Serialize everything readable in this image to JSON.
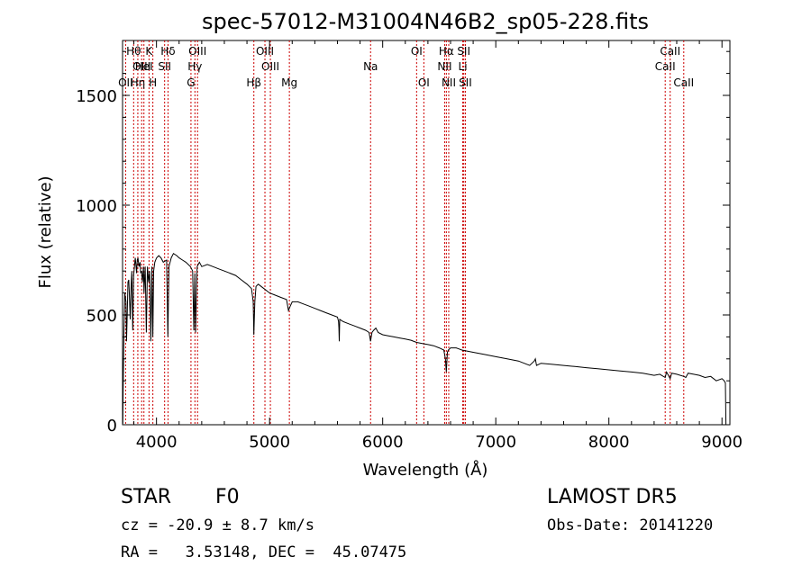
{
  "chart_data": {
    "type": "line",
    "title": "spec-57012-M31004N46B2_sp05-228.fits",
    "xlabel": "Wavelength (Å)",
    "ylabel": "Flux (relative)",
    "xlim": [
      3700,
      9070
    ],
    "ylim": [
      0,
      1750
    ],
    "xticks": [
      4000,
      5000,
      6000,
      7000,
      8000,
      9000
    ],
    "yticks": [
      0,
      500,
      1000,
      1500
    ],
    "grid": false,
    "line_color": "#000000",
    "marker_color": "#cc0000",
    "series": [
      {
        "x": [
          3702,
          3705,
          3712,
          3720,
          3730,
          3735,
          3742,
          3748,
          3755,
          3760,
          3768,
          3775,
          3782,
          3790,
          3798,
          3805,
          3812,
          3818,
          3824,
          3830,
          3836,
          3845,
          3855,
          3860,
          3868,
          3875,
          3885,
          3890,
          3900,
          3910,
          3920,
          3930,
          3940,
          3950,
          3960,
          3968,
          3975,
          3985,
          4000,
          4020,
          4040,
          4060,
          4090,
          4101,
          4110,
          4130,
          4150,
          4180,
          4200,
          4230,
          4260,
          4300,
          4320,
          4330,
          4340,
          4345,
          4360,
          4380,
          4400,
          4450,
          4500,
          4550,
          4600,
          4650,
          4700,
          4750,
          4800,
          4840,
          4855,
          4861,
          4870,
          4880,
          4900,
          4950,
          5000,
          5050,
          5100,
          5150,
          5167,
          5183,
          5200,
          5250,
          5300,
          5350,
          5400,
          5450,
          5500,
          5550,
          5600,
          5610,
          5613,
          5616,
          5620,
          5650,
          5700,
          5750,
          5800,
          5850,
          5880,
          5893,
          5905,
          5920,
          5940,
          5960,
          6000,
          6050,
          6100,
          6150,
          6200,
          6250,
          6300,
          6350,
          6400,
          6450,
          6500,
          6540,
          6555,
          6563,
          6572,
          6580,
          6600,
          6650,
          6700,
          6800,
          6900,
          7000,
          7100,
          7200,
          7300,
          7340,
          7350,
          7360,
          7400,
          7500,
          7600,
          7700,
          7800,
          7900,
          8000,
          8100,
          8200,
          8300,
          8400,
          8450,
          8498,
          8510,
          8542,
          8555,
          8600,
          8662,
          8680,
          8700,
          8750,
          8800,
          8850,
          8900,
          8950,
          9000,
          9020,
          9030,
          9035
        ],
        "y": [
          5,
          150,
          420,
          600,
          560,
          380,
          520,
          650,
          660,
          600,
          480,
          620,
          700,
          430,
          680,
          720,
          760,
          730,
          690,
          750,
          760,
          720,
          740,
          690,
          700,
          650,
          720,
          600,
          720,
          420,
          720,
          650,
          700,
          380,
          720,
          400,
          700,
          740,
          760,
          770,
          760,
          740,
          750,
          400,
          720,
          760,
          780,
          770,
          760,
          750,
          740,
          720,
          700,
          430,
          690,
          420,
          720,
          740,
          720,
          730,
          720,
          710,
          700,
          690,
          680,
          660,
          640,
          620,
          560,
          410,
          560,
          630,
          640,
          620,
          600,
          590,
          580,
          570,
          520,
          540,
          560,
          560,
          550,
          540,
          530,
          520,
          510,
          500,
          490,
          470,
          440,
          380,
          480,
          470,
          460,
          450,
          440,
          430,
          420,
          380,
          420,
          430,
          440,
          420,
          410,
          405,
          400,
          395,
          390,
          385,
          375,
          370,
          365,
          360,
          350,
          340,
          300,
          240,
          330,
          340,
          350,
          350,
          340,
          330,
          320,
          310,
          300,
          290,
          270,
          290,
          300,
          270,
          280,
          275,
          270,
          265,
          260,
          255,
          250,
          245,
          240,
          235,
          225,
          230,
          215,
          240,
          210,
          235,
          230,
          220,
          215,
          235,
          230,
          225,
          215,
          220,
          200,
          210,
          200,
          190,
          0
        ]
      }
    ],
    "spectral_lines": [
      {
        "label": "OII",
        "wavelength": 3727,
        "row": 3
      },
      {
        "label": "Hθ",
        "wavelength": 3798,
        "row": 1
      },
      {
        "label": "Hη",
        "wavelength": 3835,
        "row": 3
      },
      {
        "label": "OIII",
        "wavelength": 3869,
        "row": 2
      },
      {
        "label": "HeI",
        "wavelength": 3889,
        "row": 2
      },
      {
        "label": "K",
        "wavelength": 3934,
        "row": 1
      },
      {
        "label": "H",
        "wavelength": 3968,
        "row": 3
      },
      {
        "label": "SII",
        "wavelength": 4072,
        "row": 2
      },
      {
        "label": "Hδ",
        "wavelength": 4102,
        "row": 1
      },
      {
        "label": "OIII",
        "wavelength": 4363,
        "row": 1
      },
      {
        "label": "Hγ",
        "wavelength": 4340,
        "row": 2
      },
      {
        "label": "G",
        "wavelength": 4305,
        "row": 3
      },
      {
        "label": "Hβ",
        "wavelength": 4861,
        "row": 3
      },
      {
        "label": "OIII",
        "wavelength": 4959,
        "row": 1
      },
      {
        "label": "OIII",
        "wavelength": 5007,
        "row": 2
      },
      {
        "label": "Mg",
        "wavelength": 5175,
        "row": 3
      },
      {
        "label": "Na",
        "wavelength": 5893,
        "row": 2
      },
      {
        "label": "OI",
        "wavelength": 6300,
        "row": 1
      },
      {
        "label": "OI",
        "wavelength": 6364,
        "row": 3
      },
      {
        "label": "Hα",
        "wavelength": 6563,
        "row": 1
      },
      {
        "label": "NII",
        "wavelength": 6548,
        "row": 2
      },
      {
        "label": "NII",
        "wavelength": 6584,
        "row": 3
      },
      {
        "label": "SII",
        "wavelength": 6717,
        "row": 1
      },
      {
        "label": "Li",
        "wavelength": 6708,
        "row": 2
      },
      {
        "label": "SII",
        "wavelength": 6731,
        "row": 3
      },
      {
        "label": "CaII",
        "wavelength": 8542,
        "row": 1
      },
      {
        "label": "CaII",
        "wavelength": 8498,
        "row": 2
      },
      {
        "label": "CaII",
        "wavelength": 8662,
        "row": 3
      }
    ]
  },
  "info": {
    "object_class": "STAR",
    "subclass": "F0",
    "survey": "LAMOST DR5",
    "redshift": "cz = -20.9 ± 8.7 km/s",
    "obs_date": "Obs-Date: 20141220",
    "coords": "RA =   3.53148, DEC =  45.07475"
  }
}
